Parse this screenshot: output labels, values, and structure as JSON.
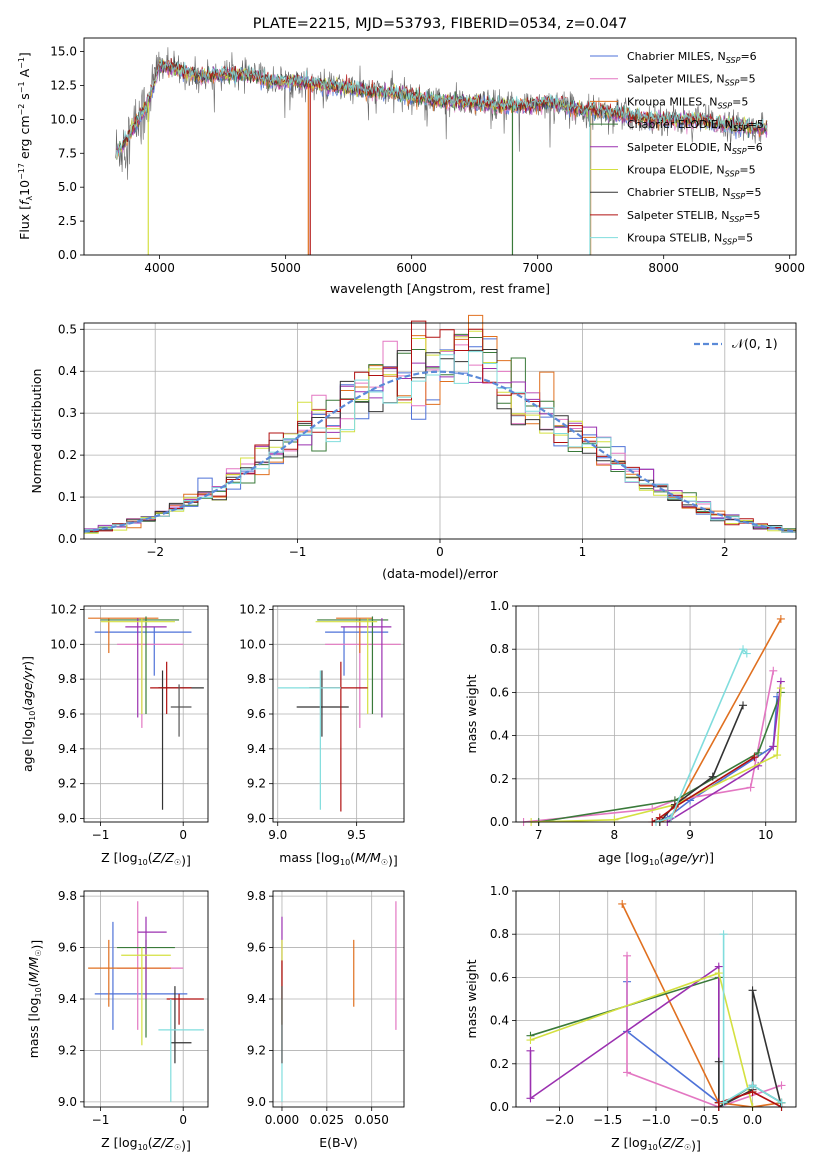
{
  "chart_data": [
    {
      "type": "line",
      "title": "PLATE=2215, MJD=53793, FIBERID=0534, z=0.047",
      "xlabel": "wavelength [Angstrom, rest frame]",
      "ylabel": "Flux [f_λ 10^-17 erg cm^-2 s^-1 A^-1]",
      "xlim": [
        3400,
        9050
      ],
      "ylim": [
        0,
        16
      ],
      "xticks": [
        "4000",
        "5000",
        "6000",
        "7000",
        "8000",
        "9000"
      ],
      "yticks": [
        "0.0",
        "2.5",
        "5.0",
        "7.5",
        "10.0",
        "12.5",
        "15.0"
      ],
      "legend_position": "top-right",
      "continuum": {
        "x": [
          3650,
          3700,
          3800,
          3900,
          3950,
          4000,
          4100,
          4300,
          4500,
          4700,
          4900,
          5100,
          5300,
          5500,
          5700,
          5900,
          6100,
          6300,
          6500,
          6700,
          6900,
          7100,
          7300,
          7500,
          7700,
          7900,
          8100,
          8300,
          8500,
          8800
        ],
        "y": [
          7.5,
          8.0,
          9.5,
          11.0,
          12.5,
          14.0,
          13.8,
          13.2,
          13.3,
          13.3,
          12.8,
          12.8,
          12.5,
          12.3,
          12.0,
          11.9,
          11.5,
          11.3,
          11.2,
          11.0,
          11.0,
          11.3,
          10.8,
          10.6,
          10.3,
          10.0,
          10.0,
          9.9,
          9.6,
          9.3
        ]
      },
      "series": [
        {
          "name": "Chabrier MILES, N_SSP=6",
          "color": "#4e72d8"
        },
        {
          "name": "Salpeter MILES, N_SSP=5",
          "color": "#e377c2"
        },
        {
          "name": "Kroupa MILES, N_SSP=5",
          "color": "#e07020"
        },
        {
          "name": "Chabrier ELODIE, N_SSP=5",
          "color": "#3a7a3a"
        },
        {
          "name": "Salpeter ELODIE, N_SSP=6",
          "color": "#9b30b0"
        },
        {
          "name": "Kroupa ELODIE, N_SSP=5",
          "color": "#d4e040"
        },
        {
          "name": "Chabrier STELIB, N_SSP=5",
          "color": "#333333"
        },
        {
          "name": "Salpeter STELIB, N_SSP=5",
          "color": "#b01010"
        },
        {
          "name": "Kroupa STELIB, N_SSP=5",
          "color": "#80dddd"
        }
      ]
    },
    {
      "type": "histogram",
      "xlabel": "(data-model)/error",
      "ylabel": "Normed distribution",
      "xlim": [
        -2.5,
        2.5
      ],
      "ylim": [
        0,
        0.515
      ],
      "xticks": [
        "−2",
        "−1",
        "0",
        "1",
        "2"
      ],
      "yticks": [
        "0.0",
        "0.1",
        "0.2",
        "0.3",
        "0.4",
        "0.5"
      ],
      "bin_width": 0.1,
      "legend": "𝒩(0, 1)",
      "reference_color": "#5b8ad8",
      "series_colors": [
        "#4e72d8",
        "#e377c2",
        "#e07020",
        "#3a7a3a",
        "#9b30b0",
        "#d4e040",
        "#333333",
        "#b01010",
        "#80dddd"
      ]
    },
    {
      "type": "errorbar",
      "xlabel": "Z [log10(Z/Z☉)]",
      "ylabel": "age [log10(age/yr)]",
      "xlim": [
        -1.2,
        0.3
      ],
      "ylim": [
        8.98,
        10.22
      ],
      "xticks": [
        {
          "v": -1,
          "t": "−1"
        },
        {
          "v": 0,
          "t": "0"
        }
      ],
      "yticks": [
        {
          "v": 9.0,
          "t": "9.0"
        },
        {
          "v": 9.2,
          "t": "9.2"
        },
        {
          "v": 9.4,
          "t": "9.4"
        },
        {
          "v": 9.6,
          "t": "9.6"
        },
        {
          "v": 9.8,
          "t": "9.8"
        },
        {
          "v": 10.0,
          "t": "10.0"
        },
        {
          "v": 10.2,
          "t": "10.2"
        }
      ],
      "points": [
        {
          "x": -0.35,
          "y": 10.07,
          "x0": -1.07,
          "x1": 0.1,
          "y0": 9.82,
          "y1": 10.1,
          "color": "#4e72d8"
        },
        {
          "x": -0.5,
          "y": 10.0,
          "x0": -0.8,
          "x1": 0.0,
          "y0": 9.52,
          "y1": 10.08,
          "color": "#e377c2"
        },
        {
          "x": -0.9,
          "y": 10.15,
          "x0": -1.15,
          "x1": -0.3,
          "y0": 9.95,
          "y1": 10.15,
          "color": "#e07020"
        },
        {
          "x": -0.45,
          "y": 10.14,
          "x0": -1.0,
          "x1": -0.05,
          "y0": 9.6,
          "y1": 10.16,
          "color": "#3a7a3a"
        },
        {
          "x": -0.55,
          "y": 10.1,
          "x0": -0.7,
          "x1": -0.2,
          "y0": 9.58,
          "y1": 10.15,
          "color": "#9b30b0"
        },
        {
          "x": -0.5,
          "y": 10.13,
          "x0": -1.0,
          "x1": -0.1,
          "y0": 9.6,
          "y1": 10.15,
          "color": "#d4e040"
        },
        {
          "x": -0.25,
          "y": 9.75,
          "x0": -0.3,
          "x1": 0.25,
          "y0": 9.05,
          "y1": 9.85,
          "color": "#333333"
        },
        {
          "x": -0.2,
          "y": 9.75,
          "x0": -0.4,
          "x1": 0.1,
          "y0": 9.6,
          "y1": 9.9,
          "color": "#b01010"
        },
        {
          "x": -0.05,
          "y": 9.64,
          "x0": -0.15,
          "x1": 0.1,
          "y0": 9.47,
          "y1": 9.77,
          "color": "#555555"
        }
      ]
    },
    {
      "type": "errorbar",
      "xlabel": "mass [log10(M/M☉)]",
      "ylabel": "",
      "xlim": [
        8.97,
        9.8
      ],
      "ylim": [
        8.98,
        10.22
      ],
      "xticks": [
        {
          "v": 9.0,
          "t": "9.0"
        },
        {
          "v": 9.5,
          "t": "9.5"
        }
      ],
      "yticks": [
        {
          "v": 9.0,
          "t": "9.0"
        },
        {
          "v": 9.2,
          "t": "9.2"
        },
        {
          "v": 9.4,
          "t": "9.4"
        },
        {
          "v": 9.6,
          "t": "9.6"
        },
        {
          "v": 9.8,
          "t": "9.8"
        },
        {
          "v": 10.0,
          "t": "10.0"
        },
        {
          "v": 10.2,
          "t": "10.2"
        }
      ],
      "points": [
        {
          "x": 9.42,
          "y": 10.07,
          "x0": 9.3,
          "x1": 9.7,
          "y0": 9.82,
          "y1": 10.1,
          "color": "#4e72d8"
        },
        {
          "x": 9.52,
          "y": 10.0,
          "x0": 9.3,
          "x1": 9.78,
          "y0": 9.52,
          "y1": 10.08,
          "color": "#e377c2"
        },
        {
          "x": 9.52,
          "y": 10.15,
          "x0": 9.37,
          "x1": 9.6,
          "y0": 9.95,
          "y1": 10.15,
          "color": "#e07020"
        },
        {
          "x": 9.6,
          "y": 10.14,
          "x0": 9.25,
          "x1": 9.7,
          "y0": 9.6,
          "y1": 10.16,
          "color": "#3a7a3a"
        },
        {
          "x": 9.66,
          "y": 10.1,
          "x0": 9.4,
          "x1": 9.72,
          "y0": 9.58,
          "y1": 10.15,
          "color": "#9b30b0"
        },
        {
          "x": 9.57,
          "y": 10.13,
          "x0": 9.24,
          "x1": 9.63,
          "y0": 9.6,
          "y1": 10.15,
          "color": "#d4e040"
        },
        {
          "x": 9.28,
          "y": 9.64,
          "x0": 9.12,
          "x1": 9.45,
          "y0": 9.47,
          "y1": 9.85,
          "color": "#333333"
        },
        {
          "x": 9.4,
          "y": 9.75,
          "x0": 9.2,
          "x1": 9.57,
          "y0": 9.04,
          "y1": 9.9,
          "color": "#b01010"
        },
        {
          "x": 9.27,
          "y": 9.75,
          "x0": 9.0,
          "x1": 9.4,
          "y0": 9.05,
          "y1": 9.85,
          "color": "#80dddd"
        }
      ]
    },
    {
      "type": "line",
      "xlabel": "age [log10(age/yr)]",
      "ylabel": "mass weight",
      "xlim": [
        6.7,
        10.4
      ],
      "ylim": [
        0,
        1.0
      ],
      "xticks": [
        {
          "v": 7,
          "t": "7"
        },
        {
          "v": 8,
          "t": "8"
        },
        {
          "v": 9,
          "t": "9"
        },
        {
          "v": 10,
          "t": "10"
        }
      ],
      "yticks": [
        {
          "v": 0,
          "t": "0.0"
        },
        {
          "v": 0.2,
          "t": "0.2"
        },
        {
          "v": 0.4,
          "t": "0.4"
        },
        {
          "v": 0.6,
          "t": "0.6"
        },
        {
          "v": 0.8,
          "t": "0.8"
        },
        {
          "v": 1.0,
          "t": "1.0"
        }
      ],
      "series": [
        {
          "color": "#4e72d8",
          "x": [
            8.6,
            8.7,
            9.0,
            10.1,
            10.15
          ],
          "y": [
            0.0,
            0.02,
            0.1,
            0.35,
            0.58
          ]
        },
        {
          "color": "#e377c2",
          "x": [
            6.8,
            8.5,
            8.8,
            9.8,
            10.1
          ],
          "y": [
            0.0,
            0.06,
            0.1,
            0.16,
            0.7
          ]
        },
        {
          "color": "#e07020",
          "x": [
            8.6,
            8.75,
            10.2
          ],
          "y": [
            0.0,
            0.02,
            0.94
          ]
        },
        {
          "color": "#3a7a3a",
          "x": [
            7.0,
            8.8,
            9.9,
            10.2
          ],
          "y": [
            0.0,
            0.1,
            0.32,
            0.6
          ]
        },
        {
          "color": "#9b30b0",
          "x": [
            8.7,
            9.9,
            10.1,
            10.2
          ],
          "y": [
            0.0,
            0.26,
            0.35,
            0.65
          ]
        },
        {
          "color": "#d4e040",
          "x": [
            6.9,
            8.0,
            8.8,
            10.15,
            10.2
          ],
          "y": [
            0.0,
            0.01,
            0.08,
            0.31,
            0.62
          ]
        },
        {
          "color": "#333333",
          "x": [
            8.6,
            8.8,
            9.3,
            9.7
          ],
          "y": [
            0.0,
            0.08,
            0.21,
            0.54
          ]
        },
        {
          "color": "#b01010",
          "x": [
            8.5,
            8.6,
            8.8,
            9.85
          ],
          "y": [
            0.0,
            0.02,
            0.07,
            0.3
          ]
        },
        {
          "color": "#80dddd",
          "x": [
            8.55,
            8.75,
            9.7,
            9.75
          ],
          "y": [
            0.0,
            0.02,
            0.8,
            0.78
          ]
        }
      ]
    },
    {
      "type": "errorbar",
      "xlabel": "Z [log10(Z/Z☉)]",
      "ylabel": "mass [log10(M/M☉)]",
      "xlim": [
        -1.2,
        0.3
      ],
      "ylim": [
        8.98,
        9.82
      ],
      "xticks": [
        {
          "v": -1,
          "t": "−1"
        },
        {
          "v": 0,
          "t": "0"
        }
      ],
      "yticks": [
        {
          "v": 9.0,
          "t": "9.0"
        },
        {
          "v": 9.2,
          "t": "9.2"
        },
        {
          "v": 9.4,
          "t": "9.4"
        },
        {
          "v": 9.6,
          "t": "9.6"
        },
        {
          "v": 9.8,
          "t": "9.8"
        }
      ],
      "points": [
        {
          "x": -0.85,
          "y": 9.42,
          "x0": -1.07,
          "x1": 0.05,
          "y0": 9.28,
          "y1": 9.7,
          "color": "#4e72d8"
        },
        {
          "x": -0.55,
          "y": 9.52,
          "x0": -0.8,
          "x1": 0.0,
          "y0": 9.28,
          "y1": 9.78,
          "color": "#e377c2"
        },
        {
          "x": -0.9,
          "y": 9.52,
          "x0": -1.15,
          "x1": -0.15,
          "y0": 9.37,
          "y1": 9.63,
          "color": "#e07020"
        },
        {
          "x": -0.45,
          "y": 9.6,
          "x0": -0.8,
          "x1": -0.1,
          "y0": 9.25,
          "y1": 9.63,
          "color": "#3a7a3a"
        },
        {
          "x": -0.45,
          "y": 9.66,
          "x0": -0.55,
          "x1": -0.2,
          "y0": 9.4,
          "y1": 9.72,
          "color": "#9b30b0"
        },
        {
          "x": -0.5,
          "y": 9.57,
          "x0": -0.75,
          "x1": -0.15,
          "y0": 9.22,
          "y1": 9.6,
          "color": "#d4e040"
        },
        {
          "x": -0.1,
          "y": 9.23,
          "x0": -0.15,
          "x1": 0.1,
          "y0": 9.15,
          "y1": 9.45,
          "color": "#333333"
        },
        {
          "x": -0.05,
          "y": 9.4,
          "x0": -0.2,
          "x1": 0.25,
          "y0": 9.3,
          "y1": 9.42,
          "color": "#b01010"
        },
        {
          "x": -0.15,
          "y": 9.28,
          "x0": -0.3,
          "x1": 0.25,
          "y0": 9.0,
          "y1": 9.4,
          "color": "#80dddd"
        }
      ]
    },
    {
      "type": "errorbar",
      "xlabel": "E(B-V)",
      "ylabel": "",
      "xlim": [
        -0.005,
        0.068
      ],
      "ylim": [
        8.98,
        9.82
      ],
      "xticks": [
        {
          "v": 0.0,
          "t": "0.000"
        },
        {
          "v": 0.025,
          "t": "0.025"
        },
        {
          "v": 0.05,
          "t": "0.050"
        }
      ],
      "yticks": [
        {
          "v": 9.0,
          "t": "9.0"
        },
        {
          "v": 9.2,
          "t": "9.2"
        },
        {
          "v": 9.4,
          "t": "9.4"
        },
        {
          "v": 9.6,
          "t": "9.6"
        },
        {
          "v": 9.8,
          "t": "9.8"
        }
      ],
      "points": [
        {
          "x": 0.0,
          "y": 9.6,
          "x0": 0.0,
          "x1": 0.0,
          "y0": 9.4,
          "y1": 9.72,
          "color": "#9b30b0"
        },
        {
          "x": 0.0,
          "y": 9.5,
          "x0": 0.0,
          "x1": 0.0,
          "y0": 9.3,
          "y1": 9.63,
          "color": "#d4e040"
        },
        {
          "x": 0.0,
          "y": 9.45,
          "x0": 0.0,
          "x1": 0.0,
          "y0": 9.3,
          "y1": 9.55,
          "color": "#b01010"
        },
        {
          "x": 0.0,
          "y": 9.2,
          "x0": 0.0,
          "x1": 0.0,
          "y0": 9.0,
          "y1": 9.4,
          "color": "#80dddd"
        },
        {
          "x": 0.0,
          "y": 9.3,
          "x0": 0.0,
          "x1": 0.0,
          "y0": 9.15,
          "y1": 9.45,
          "color": "#555555"
        },
        {
          "x": 0.04,
          "y": 9.5,
          "x0": 0.04,
          "x1": 0.04,
          "y0": 9.37,
          "y1": 9.63,
          "color": "#e07020"
        },
        {
          "x": 0.0635,
          "y": 9.55,
          "x0": 0.0635,
          "x1": 0.0635,
          "y0": 9.28,
          "y1": 9.78,
          "color": "#e377c2"
        }
      ]
    },
    {
      "type": "line",
      "xlabel": "Z [log10(Z/Z☉)]",
      "ylabel": "mass weight",
      "xlim": [
        -2.45,
        0.45
      ],
      "ylim": [
        0,
        1.0
      ],
      "xticks": [
        {
          "v": -2.0,
          "t": "−2.0"
        },
        {
          "v": -1.5,
          "t": "−1.5"
        },
        {
          "v": -1.0,
          "t": "−1.0"
        },
        {
          "v": -0.5,
          "t": "−0.5"
        },
        {
          "v": 0.0,
          "t": "0.0"
        }
      ],
      "yticks": [
        {
          "v": 0,
          "t": "0.0"
        },
        {
          "v": 0.2,
          "t": "0.2"
        },
        {
          "v": 0.4,
          "t": "0.4"
        },
        {
          "v": 0.6,
          "t": "0.6"
        },
        {
          "v": 0.8,
          "t": "0.8"
        },
        {
          "v": 1.0,
          "t": "1.0"
        }
      ],
      "series": [
        {
          "color": "#4e72d8",
          "x": [
            -1.3,
            -1.3,
            -0.35,
            -0.35,
            0.0,
            0.3
          ],
          "y": [
            0.58,
            0.35,
            0.02,
            0.0,
            0.1,
            0.02
          ]
        },
        {
          "color": "#e377c2",
          "x": [
            -1.3,
            -1.3,
            -0.35,
            0.3
          ],
          "y": [
            0.7,
            0.16,
            0.0,
            0.1
          ]
        },
        {
          "color": "#e07020",
          "x": [
            -1.35,
            -0.35,
            0.0,
            0.3
          ],
          "y": [
            0.94,
            0.02,
            0.0,
            0.02
          ]
        },
        {
          "color": "#3a7a3a",
          "x": [
            -2.3,
            -0.35,
            -0.35,
            0.0,
            0.3
          ],
          "y": [
            0.33,
            0.6,
            0.0,
            0.1,
            0.02
          ]
        },
        {
          "color": "#9b30b0",
          "x": [
            -2.3,
            -2.3,
            -0.35,
            -0.35
          ],
          "y": [
            0.26,
            0.04,
            0.65,
            0.0
          ]
        },
        {
          "color": "#d4e040",
          "x": [
            -2.3,
            -0.35,
            0.0
          ],
          "y": [
            0.31,
            0.62,
            0.0
          ]
        },
        {
          "color": "#333333",
          "x": [
            -0.35,
            -0.35,
            0.0,
            0.0,
            0.3
          ],
          "y": [
            0.21,
            0.0,
            0.08,
            0.54,
            0.0
          ]
        },
        {
          "color": "#b01010",
          "x": [
            -0.35,
            -0.35,
            0.0,
            0.3
          ],
          "y": [
            0.0,
            0.02,
            0.07,
            0.0
          ]
        },
        {
          "color": "#80dddd",
          "x": [
            -0.3,
            -0.3,
            0.0,
            0.3
          ],
          "y": [
            0.8,
            0.02,
            0.1,
            0.02
          ]
        }
      ]
    }
  ]
}
